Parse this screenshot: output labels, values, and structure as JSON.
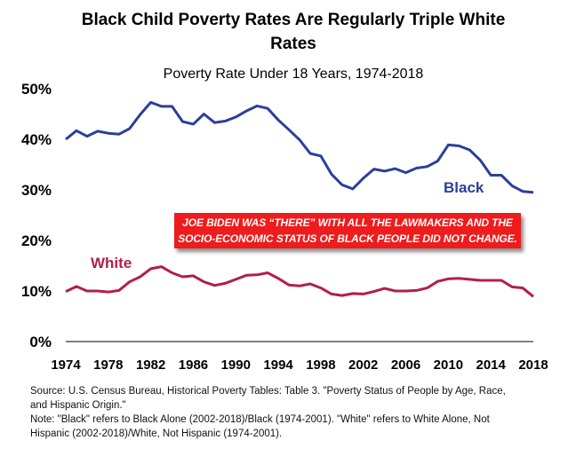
{
  "title_line1": "Black Child Poverty Rates Are Regularly Triple White",
  "title_line2": "Rates",
  "subtitle": "Poverty Rate Under 18 Years, 1974-2018",
  "annotation_line1": "JOE BIDEN WAS “THERE” WITH ALL THE LAWMAKERS AND THE",
  "annotation_line2": "SOCIO-ECONOMIC STATUS OF BLACK PEOPLE DID NOT CHANGE.",
  "source_line1": "Source: U.S. Census Bureau, Historical Poverty Tables: Table 3. \"Poverty Status of People by Age, Race,",
  "source_line2": "and Hispanic Origin.\"",
  "note_line1": "Note: \"Black\" refers to Black Alone (2002-2018)/Black (1974-2001). \"White\" refers to White Alone, Not",
  "note_line2": "Hispanic (2002-2018)/White, Not Hispanic (1974-2001).",
  "colors": {
    "black_series": "#2b3f9a",
    "white_series": "#b21e4b",
    "annotation_bg": "#ee1c1c"
  },
  "chart_data": {
    "type": "line",
    "x": [
      1974,
      1975,
      1976,
      1977,
      1978,
      1979,
      1980,
      1981,
      1982,
      1983,
      1984,
      1985,
      1986,
      1987,
      1988,
      1989,
      1990,
      1991,
      1992,
      1993,
      1994,
      1995,
      1996,
      1997,
      1998,
      1999,
      2000,
      2001,
      2002,
      2003,
      2004,
      2005,
      2006,
      2007,
      2008,
      2009,
      2010,
      2011,
      2012,
      2013,
      2014,
      2015,
      2016,
      2017,
      2018
    ],
    "xticks": [
      "1974",
      "1978",
      "1982",
      "1986",
      "1990",
      "1994",
      "1998",
      "2002",
      "2006",
      "2010",
      "2014",
      "2018"
    ],
    "ylim": [
      0,
      50
    ],
    "yticks": [
      "0%",
      "10%",
      "20%",
      "30%",
      "40%",
      "50%"
    ],
    "grid": false,
    "series": [
      {
        "name": "Black",
        "color": "#2b3f9a",
        "values": [
          40.0,
          41.7,
          40.6,
          41.6,
          41.2,
          41.0,
          42.1,
          44.9,
          47.3,
          46.5,
          46.5,
          43.5,
          43.0,
          45.0,
          43.3,
          43.6,
          44.4,
          45.6,
          46.6,
          46.1,
          43.8,
          41.9,
          39.9,
          37.2,
          36.7,
          33.1,
          31.0,
          30.2,
          32.3,
          34.1,
          33.7,
          34.2,
          33.4,
          34.3,
          34.6,
          35.7,
          38.9,
          38.7,
          37.9,
          35.9,
          32.9,
          32.9,
          30.8,
          29.7,
          29.5
        ]
      },
      {
        "name": "White",
        "color": "#b21e4b",
        "values": [
          9.9,
          10.9,
          10.0,
          10.0,
          9.8,
          10.1,
          11.8,
          12.8,
          14.4,
          14.8,
          13.6,
          12.8,
          13.0,
          11.8,
          11.1,
          11.5,
          12.3,
          13.1,
          13.2,
          13.6,
          12.5,
          11.2,
          11.0,
          11.4,
          10.6,
          9.4,
          9.1,
          9.5,
          9.4,
          9.9,
          10.5,
          10.0,
          10.0,
          10.1,
          10.6,
          11.9,
          12.4,
          12.5,
          12.3,
          12.1,
          12.1,
          12.1,
          10.8,
          10.6,
          8.9
        ]
      }
    ]
  }
}
